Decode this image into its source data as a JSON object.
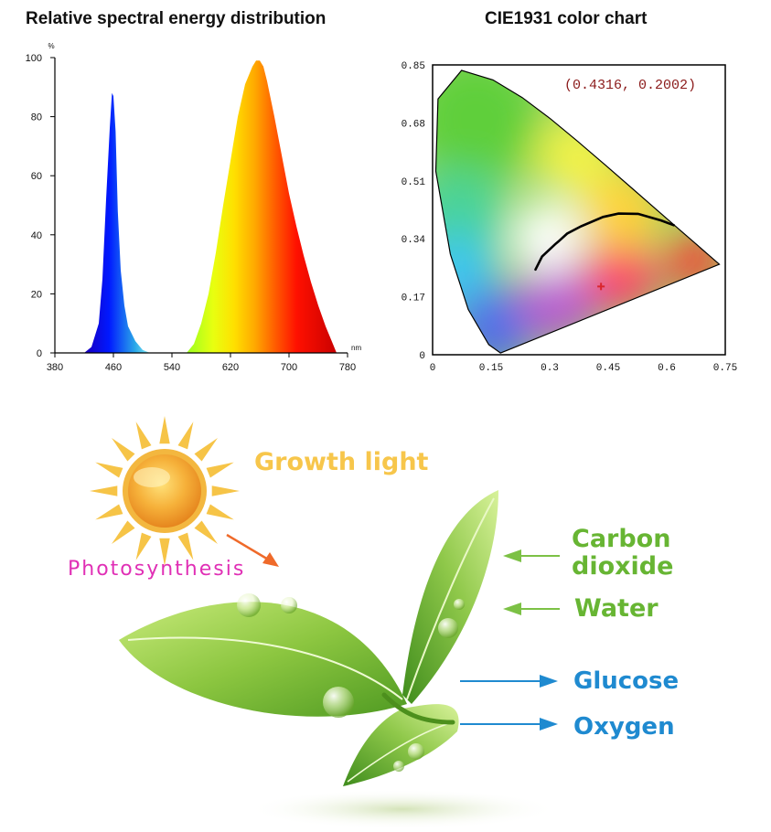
{
  "chart_data": [
    {
      "type": "area",
      "title": "Relative spectral energy distribution",
      "xlabel": "nm",
      "ylabel": "%",
      "xlim": [
        380,
        780
      ],
      "ylim": [
        0,
        100
      ],
      "xticks": [
        "380",
        "460",
        "540",
        "620",
        "700",
        "780"
      ],
      "yticks": [
        "0",
        "20",
        "40",
        "60",
        "80",
        "100"
      ],
      "grid": false,
      "series": [
        {
          "x": [
            420,
            430,
            440,
            445,
            450,
            455,
            458,
            460,
            463,
            466,
            470,
            475,
            480,
            490,
            500,
            510,
            520,
            530,
            560,
            570,
            580,
            590,
            600,
            610,
            620,
            630,
            640,
            650,
            655,
            660,
            665,
            670,
            680,
            690,
            700,
            710,
            720,
            730,
            740,
            750,
            760,
            765
          ],
          "y": [
            0,
            2,
            10,
            25,
            52,
            76,
            88,
            87,
            75,
            48,
            28,
            16,
            9,
            4,
            1,
            0,
            0,
            0,
            0,
            3,
            10,
            20,
            34,
            50,
            65,
            80,
            91,
            97,
            99,
            99,
            97,
            92,
            80,
            67,
            54,
            43,
            33,
            24,
            16,
            9,
            3,
            0
          ]
        }
      ]
    },
    {
      "type": "scatter",
      "title": "CIE1931 color chart",
      "xlim": [
        0,
        0.75
      ],
      "ylim": [
        0,
        0.85
      ],
      "xticks": [
        "0",
        "0.15",
        "0.3",
        "0.45",
        "0.6",
        "0.75"
      ],
      "yticks": [
        "0",
        "0.17",
        "0.34",
        "0.51",
        "0.68",
        "0.85"
      ],
      "point": {
        "x": 0.4316,
        "y": 0.2002,
        "label": "(0.4316, 0.2002)"
      },
      "locus": {
        "x": [
          0.1741,
          0.144,
          0.0913,
          0.0454,
          0.0082,
          0.0139,
          0.0743,
          0.1547,
          0.2296,
          0.3016,
          0.3731,
          0.4441,
          0.5125,
          0.5752,
          0.627,
          0.6658,
          0.6915,
          0.7079,
          0.7347
        ],
        "y": [
          0.005,
          0.0297,
          0.1327,
          0.295,
          0.5384,
          0.7502,
          0.8338,
          0.8059,
          0.7543,
          0.6923,
          0.6245,
          0.5547,
          0.4866,
          0.4242,
          0.3725,
          0.334,
          0.3083,
          0.292,
          0.2653
        ]
      },
      "planckian": {
        "x": [
          0.2637,
          0.2806,
          0.3135,
          0.3221,
          0.3447,
          0.3805,
          0.4369,
          0.4764,
          0.5266,
          0.5854,
          0.618
        ],
        "y": [
          0.25,
          0.2883,
          0.3237,
          0.3318,
          0.3553,
          0.3768,
          0.4041,
          0.4139,
          0.4133,
          0.3938,
          0.38
        ]
      }
    }
  ],
  "labels": {
    "growth_light": "Growth light",
    "photosynthesis": "Photosynthesis",
    "carbon": "Carbon",
    "dioxide": "dioxide",
    "water": "Water",
    "glucose": "Glucose",
    "oxygen": "Oxygen"
  },
  "colors": {
    "growth_light": "#f7c64b",
    "photosynthesis": "#e02fb5",
    "inputs": "#67b533",
    "outputs": "#1f8ad0",
    "point_marker": "#d9262c",
    "point_label": "#8b1a1a"
  }
}
